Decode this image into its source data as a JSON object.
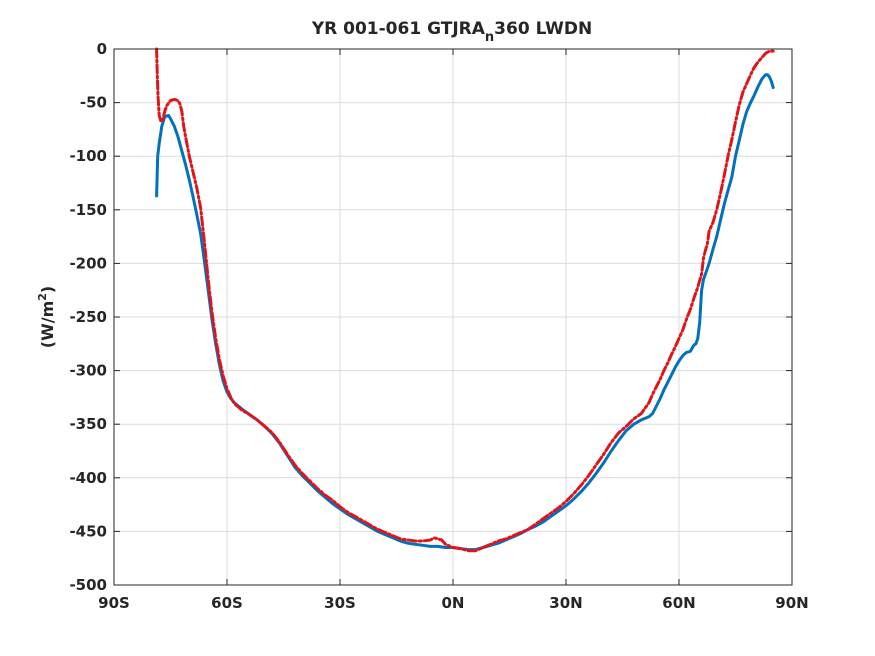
{
  "chart_data": {
    "type": "line",
    "title_main": "YR 001-061 GTJRA",
    "title_sub": "n",
    "title_end": "360 LWDN",
    "ylabel_main": "(W/m",
    "ylabel_sup": "2",
    "ylabel_end": ")",
    "xlim": [
      -90,
      90
    ],
    "ylim": [
      -500,
      0
    ],
    "x_ticks": [
      -90,
      -60,
      -30,
      0,
      30,
      60,
      90
    ],
    "x_tick_labels": [
      "90S",
      "60S",
      "30S",
      "0N",
      "30N",
      "60N",
      "90N"
    ],
    "y_ticks": [
      0,
      -50,
      -100,
      -150,
      -200,
      -250,
      -300,
      -350,
      -400,
      -450,
      -500
    ],
    "y_tick_labels": [
      "0",
      "-50",
      "-100",
      "-150",
      "-200",
      "-250",
      "-300",
      "-350",
      "-400",
      "-450",
      "-500"
    ],
    "grid": true,
    "series": [
      {
        "color": "#0072BD",
        "style": "solid",
        "x": [
          -78.7,
          -78.4,
          -78,
          -77.3,
          -76.5,
          -75.5,
          -75,
          -74,
          -73,
          -72,
          -71,
          -70,
          -69,
          -68,
          -67,
          -66,
          -65,
          -64,
          -63,
          -62,
          -61,
          -60,
          -59,
          -58,
          -57,
          -56,
          -54,
          -52,
          -50,
          -48,
          -46,
          -44,
          -42,
          -40,
          -38,
          -36,
          -34,
          -32,
          -30,
          -28,
          -26,
          -24,
          -22,
          -20,
          -18,
          -16,
          -14,
          -12,
          -10,
          -8,
          -6,
          -4,
          -2,
          0,
          2,
          4,
          6,
          8,
          10,
          12,
          14,
          16,
          18,
          20,
          22,
          24,
          26,
          28,
          30,
          32,
          34,
          36,
          38,
          40,
          42,
          44,
          46,
          48,
          50,
          52,
          53,
          54,
          55,
          56,
          57,
          58,
          59,
          60,
          61,
          62,
          63,
          64,
          64.5,
          65,
          65.5,
          66,
          66.5,
          67,
          67.5,
          68,
          69,
          70,
          71,
          72,
          73,
          74,
          75,
          76,
          77,
          78,
          79,
          80,
          81,
          82,
          83,
          83.5,
          84,
          84.5,
          85
        ],
        "y": [
          -137,
          -100,
          -88,
          -72,
          -63,
          -62,
          -65,
          -72,
          -82,
          -95,
          -108,
          -122,
          -138,
          -155,
          -172,
          -198,
          -225,
          -252,
          -275,
          -295,
          -310,
          -320,
          -326,
          -330,
          -333,
          -336,
          -341,
          -346,
          -352,
          -359,
          -368,
          -379,
          -390,
          -398,
          -405,
          -412,
          -418,
          -424,
          -429,
          -434,
          -438,
          -442,
          -446,
          -450,
          -453,
          -456,
          -459,
          -461,
          -462,
          -463,
          -464,
          -464,
          -465,
          -465,
          -466,
          -467,
          -467,
          -465,
          -463,
          -461,
          -458,
          -455,
          -452,
          -448,
          -445,
          -441,
          -436,
          -431,
          -426,
          -420,
          -413,
          -405,
          -396,
          -386,
          -375,
          -365,
          -356,
          -350,
          -346,
          -343,
          -340,
          -333,
          -326,
          -318,
          -311,
          -304,
          -297,
          -291,
          -286,
          -283,
          -282,
          -276,
          -275,
          -270,
          -255,
          -225,
          -215,
          -210,
          -205,
          -200,
          -187,
          -175,
          -160,
          -145,
          -132,
          -120,
          -100,
          -85,
          -70,
          -58,
          -50,
          -43,
          -35,
          -28,
          -24,
          -24,
          -26,
          -30,
          -36
        ]
      },
      {
        "color": "#E0141B",
        "style": "dashdot",
        "x": [
          -78.7,
          -78.5,
          -78.3,
          -78,
          -77.5,
          -77,
          -76.5,
          -76,
          -75,
          -74,
          -73,
          -72.5,
          -72,
          -71.5,
          -71,
          -70,
          -69,
          -68,
          -67,
          -66,
          -65,
          -64,
          -63,
          -62,
          -61,
          -60,
          -59,
          -58,
          -57,
          -56,
          -54,
          -52,
          -50,
          -48,
          -46,
          -44,
          -42,
          -40,
          -38,
          -36,
          -34,
          -32,
          -30,
          -28,
          -26,
          -24,
          -22,
          -20,
          -18,
          -16,
          -14,
          -12,
          -10,
          -8,
          -6,
          -5,
          -4,
          -3,
          -2,
          0,
          2,
          4,
          6,
          8,
          10,
          12,
          14,
          16,
          18,
          20,
          22,
          24,
          26,
          28,
          30,
          32,
          34,
          36,
          38,
          40,
          42,
          44,
          46,
          48,
          50,
          52,
          53,
          54,
          55,
          56,
          57,
          58,
          59,
          60,
          61,
          62,
          63,
          64,
          65,
          66,
          66.5,
          67,
          67.5,
          68,
          69,
          70,
          71,
          72,
          73,
          74,
          75,
          76,
          77,
          78,
          79,
          80,
          81,
          82,
          83,
          84,
          85
        ],
        "y": [
          0,
          -25,
          -45,
          -62,
          -68,
          -65,
          -58,
          -53,
          -48,
          -47,
          -48,
          -51,
          -58,
          -72,
          -82,
          -100,
          -115,
          -130,
          -148,
          -180,
          -215,
          -245,
          -270,
          -290,
          -305,
          -317,
          -325,
          -331,
          -334,
          -337,
          -341,
          -346,
          -352,
          -358,
          -367,
          -378,
          -388,
          -396,
          -403,
          -410,
          -416,
          -421,
          -427,
          -432,
          -436,
          -440,
          -444,
          -448,
          -451,
          -454,
          -457,
          -458,
          -459,
          -459,
          -458,
          -456,
          -457,
          -458,
          -462,
          -465,
          -466,
          -468,
          -468,
          -465,
          -462,
          -459,
          -457,
          -454,
          -451,
          -448,
          -443,
          -438,
          -433,
          -428,
          -422,
          -415,
          -407,
          -398,
          -388,
          -378,
          -367,
          -358,
          -352,
          -345,
          -340,
          -330,
          -322,
          -315,
          -308,
          -300,
          -293,
          -285,
          -278,
          -270,
          -262,
          -252,
          -243,
          -232,
          -222,
          -210,
          -195,
          -188,
          -182,
          -170,
          -162,
          -150,
          -135,
          -118,
          -100,
          -85,
          -68,
          -52,
          -40,
          -32,
          -24,
          -17,
          -12,
          -8,
          -4,
          -2,
          -2
        ]
      }
    ]
  }
}
